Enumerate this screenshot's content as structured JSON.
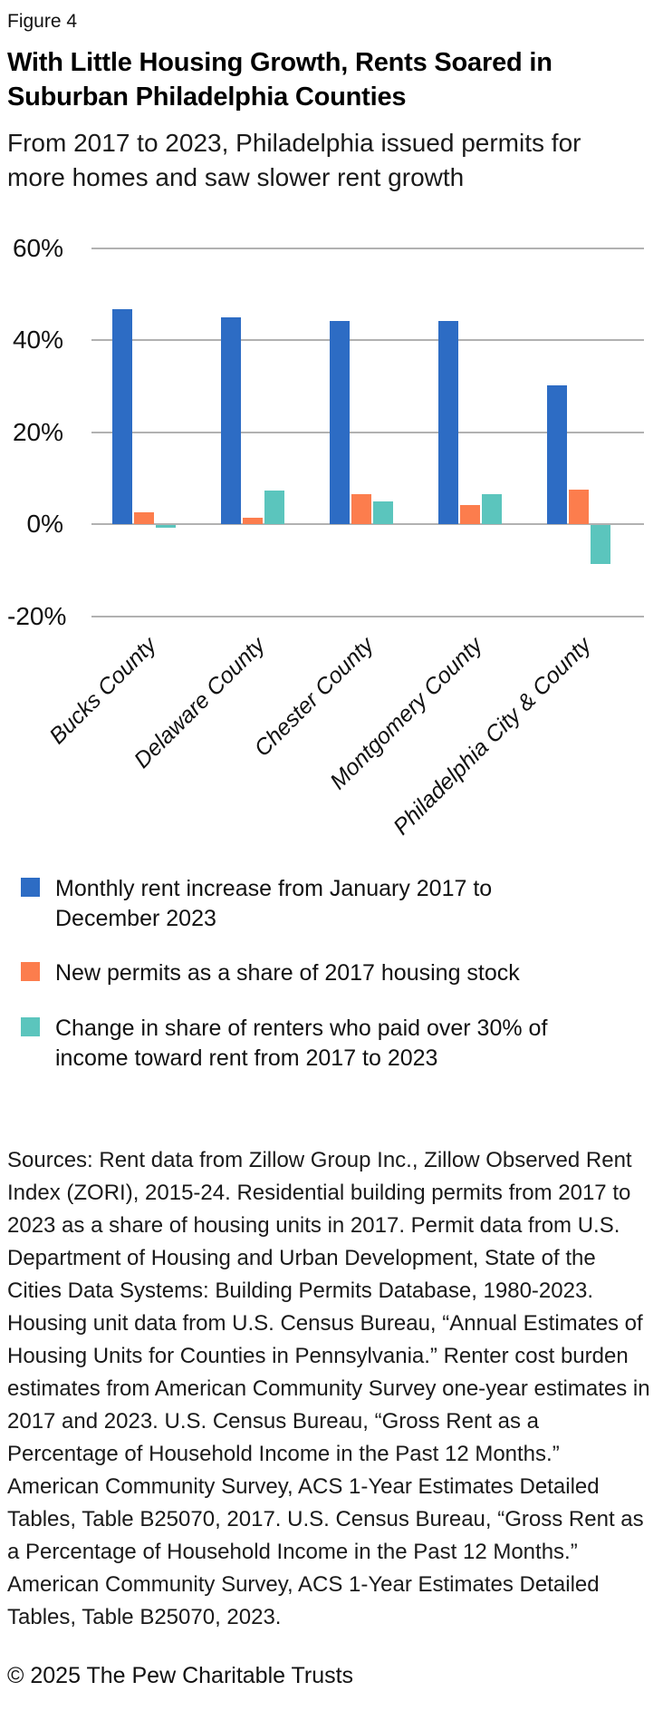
{
  "figure_label": "Figure 4",
  "title": "With Little Housing Growth, Rents Soared in Suburban Philadelphia Counties",
  "subtitle": "From 2017 to 2023, Philadelphia issued permits for more homes and saw slower rent growth",
  "chart_data": {
    "type": "bar",
    "categories": [
      "Bucks County",
      "Delaware County",
      "Chester County",
      "Montgomery County",
      "Philadelphia City & County"
    ],
    "series": [
      {
        "name": "Monthly rent increase from January 2017 to December 2023",
        "color": "#2d6cc4",
        "values": [
          46.8,
          44.9,
          44.1,
          44.2,
          30.2
        ]
      },
      {
        "name": "New permits as a share of 2017 housing stock",
        "color": "#fc7d4d",
        "values": [
          2.6,
          1.5,
          6.6,
          4.2,
          7.5
        ]
      },
      {
        "name": "Change in share of renters who paid over 30% of income toward rent from 2017 to 2023",
        "color": "#5bc5bd",
        "values": [
          -0.5,
          7.4,
          5.0,
          6.6,
          -8.5
        ]
      }
    ],
    "ylim": [
      -20,
      60
    ],
    "ytick_values": [
      60,
      40,
      20,
      0,
      -20
    ],
    "ytick_labels": [
      "60%",
      "40%",
      "20%",
      "0%",
      "-20%"
    ],
    "grid": true,
    "legend_position": "bottom",
    "gridline_color": "#b1b1b1"
  },
  "sources": "Sources: Rent data from Zillow Group Inc., Zillow Observed Rent Index (ZORI), 2015-24. Residential building permits from 2017 to 2023 as a share of housing units in 2017. Permit data from U.S. Department of Housing and Urban Development, State of the Cities Data Systems: Building Permits Database, 1980-2023. Housing unit data from U.S. Census Bureau, “Annual Estimates of Housing Units for Counties in Pennsylvania.” Renter cost burden estimates from American Community Survey one-year estimates in 2017 and 2023. U.S. Census Bureau, “Gross Rent as a Percentage of Household Income in the Past 12 Months.” American Community Survey, ACS 1-Year Estimates Detailed Tables, Table B25070, 2017. U.S. Census Bureau, “Gross Rent as a Percentage of Household Income in the Past 12 Months.” American Community Survey, ACS 1-Year Estimates Detailed Tables, Table B25070, 2023.",
  "copyright": "© 2025 The Pew Charitable Trusts"
}
